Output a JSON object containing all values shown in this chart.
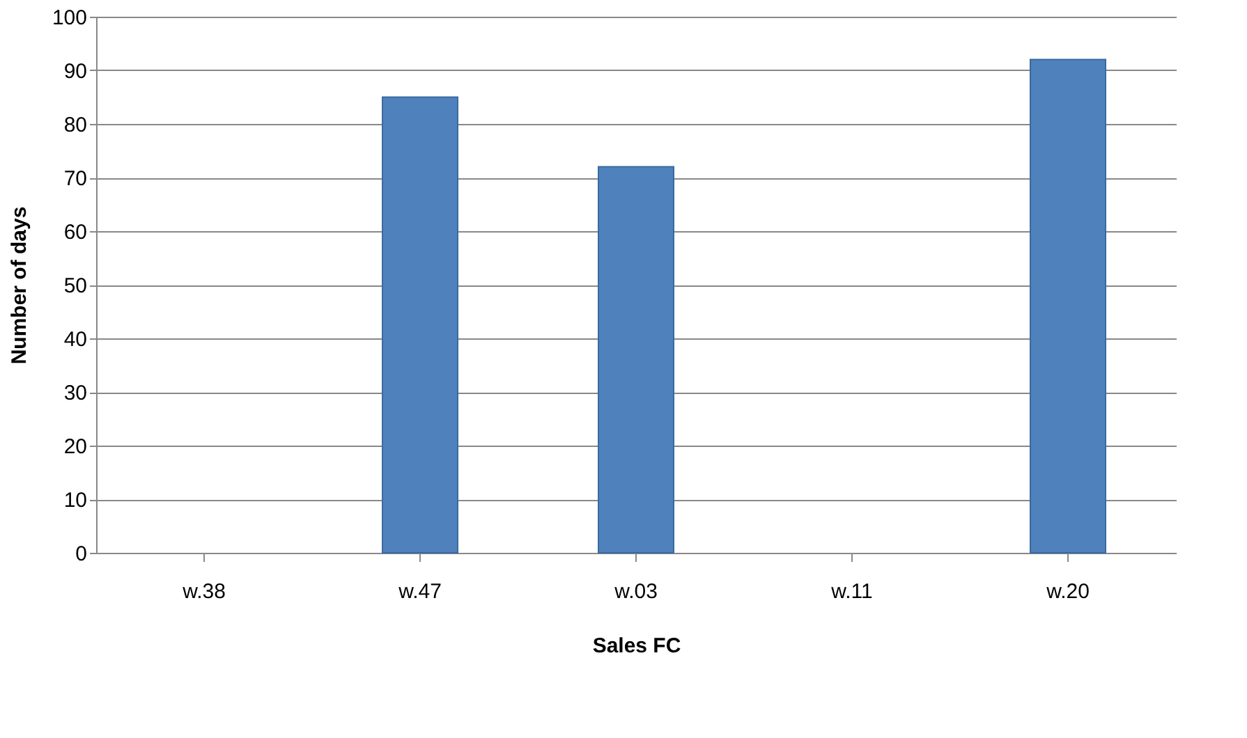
{
  "chart_data": {
    "type": "bar",
    "xlabel": "Sales FC",
    "ylabel": "Number of days",
    "categories": [
      "w.38",
      "w.47",
      "w.03",
      "w.11",
      "w.20"
    ],
    "values": [
      null,
      85,
      72,
      null,
      92
    ],
    "color": "#4f81bd",
    "ylim": [
      0,
      100
    ],
    "yticks": [
      0,
      10,
      20,
      30,
      40,
      50,
      60,
      70,
      80,
      90,
      100
    ],
    "grid": "y"
  }
}
